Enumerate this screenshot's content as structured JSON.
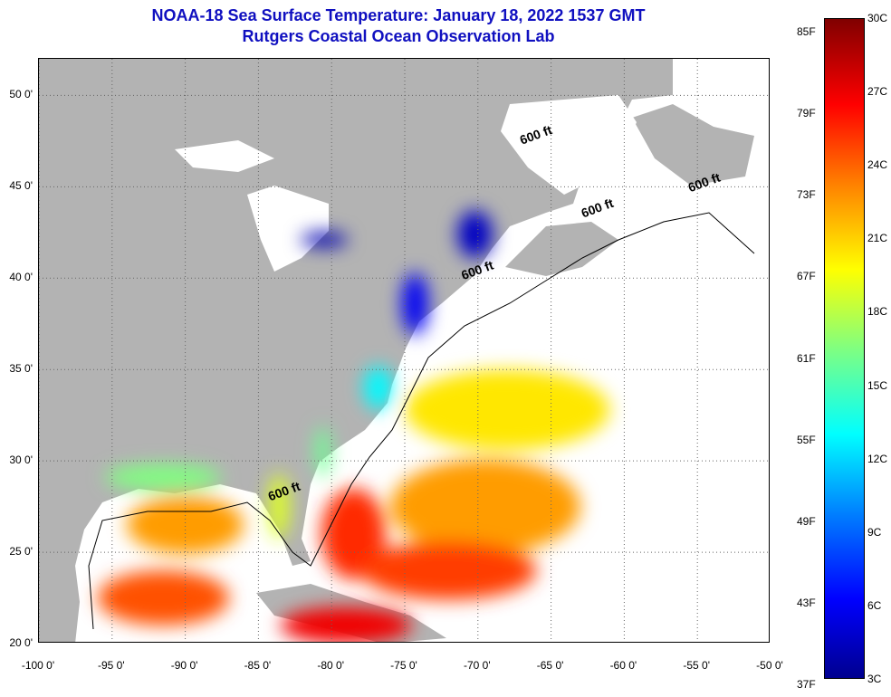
{
  "header": {
    "title": "NOAA-18 Sea Surface Temperature:  January 18, 2022 1537 GMT",
    "subtitle": "Rutgers Coastal Ocean Observation Lab"
  },
  "map": {
    "lon_range": [
      -100,
      -50
    ],
    "lat_range": [
      20,
      52
    ],
    "grid": "dotted",
    "land_color": "#b3b3b3",
    "lat_ticks": [
      {
        "value": 20,
        "label": "20 0'"
      },
      {
        "value": 25,
        "label": "25 0'"
      },
      {
        "value": 30,
        "label": "30 0'"
      },
      {
        "value": 35,
        "label": "35 0'"
      },
      {
        "value": 40,
        "label": "40 0'"
      },
      {
        "value": 45,
        "label": "45 0'"
      },
      {
        "value": 50,
        "label": "50 0'"
      }
    ],
    "lon_ticks": [
      {
        "value": -100,
        "label": "-100 0'"
      },
      {
        "value": -95,
        "label": "-95 0'"
      },
      {
        "value": -90,
        "label": "-90 0'"
      },
      {
        "value": -85,
        "label": "-85 0'"
      },
      {
        "value": -80,
        "label": "-80 0'"
      },
      {
        "value": -75,
        "label": "-75 0'"
      },
      {
        "value": -70,
        "label": "-70 0'"
      },
      {
        "value": -65,
        "label": "-65 0'"
      },
      {
        "value": -60,
        "label": "-60 0'"
      },
      {
        "value": -55,
        "label": "-55 0'"
      },
      {
        "value": -50,
        "label": "-50 0'"
      }
    ],
    "isobath_labels": [
      {
        "text": "600 ft",
        "lon": -67.0,
        "lat": 47.3
      },
      {
        "text": "600 ft",
        "lon": -55.5,
        "lat": 44.7
      },
      {
        "text": "600 ft",
        "lon": -62.8,
        "lat": 43.3
      },
      {
        "text": "600 ft",
        "lon": -71.0,
        "lat": 39.9
      },
      {
        "text": "600 ft",
        "lon": -84.2,
        "lat": 27.8
      }
    ]
  },
  "colorbar": {
    "colors": [
      "#00008f",
      "#0000ff",
      "#0080ff",
      "#00ffff",
      "#80ff80",
      "#ffff00",
      "#ff8000",
      "#ff0000",
      "#800000"
    ],
    "range_c": [
      3,
      30
    ],
    "celsius_labels": [
      {
        "value": 3,
        "label": "3C"
      },
      {
        "value": 6,
        "label": "6C"
      },
      {
        "value": 9,
        "label": "9C"
      },
      {
        "value": 12,
        "label": "12C"
      },
      {
        "value": 15,
        "label": "15C"
      },
      {
        "value": 18,
        "label": "18C"
      },
      {
        "value": 21,
        "label": "21C"
      },
      {
        "value": 24,
        "label": "24C"
      },
      {
        "value": 27,
        "label": "27C"
      },
      {
        "value": 30,
        "label": "30C"
      }
    ],
    "fahrenheit_labels": [
      {
        "value": 37,
        "label": "37F"
      },
      {
        "value": 43,
        "label": "43F"
      },
      {
        "value": 49,
        "label": "49F"
      },
      {
        "value": 55,
        "label": "55F"
      },
      {
        "value": 61,
        "label": "61F"
      },
      {
        "value": 67,
        "label": "67F"
      },
      {
        "value": 73,
        "label": "73F"
      },
      {
        "value": 79,
        "label": "79F"
      },
      {
        "value": 85,
        "label": "85F"
      }
    ]
  },
  "sst_regions": [
    {
      "name": "gulf-maine-cold",
      "temp_c": 4.5,
      "lon": -70.2,
      "lat": 42.4,
      "rx": 1.2,
      "ry": 1.3
    },
    {
      "name": "lake-erie-cold",
      "temp_c": 4.0,
      "lon": -80.5,
      "lat": 42.1,
      "rx": 1.6,
      "ry": 0.4
    },
    {
      "name": "mid-atlantic-shelf",
      "temp_c": 6.0,
      "lon": -74.3,
      "lat": 38.6,
      "rx": 0.9,
      "ry": 1.7
    },
    {
      "name": "cape-hatteras-coast",
      "temp_c": 13.0,
      "lon": -76.8,
      "lat": 34.0,
      "rx": 1.0,
      "ry": 1.2
    },
    {
      "name": "georgia-shelf",
      "temp_c": 16.0,
      "lon": -80.6,
      "lat": 30.5,
      "rx": 0.5,
      "ry": 1.4
    },
    {
      "name": "sargasso-north",
      "temp_c": 20.5,
      "lon": -68.0,
      "lat": 32.8,
      "rx": 7.0,
      "ry": 2.2
    },
    {
      "name": "sargasso-south",
      "temp_c": 22.5,
      "lon": -69.5,
      "lat": 27.5,
      "rx": 6.5,
      "ry": 2.6
    },
    {
      "name": "gulf-stream-florida",
      "temp_c": 25.5,
      "lon": -78.5,
      "lat": 26.0,
      "rx": 2.2,
      "ry": 2.5
    },
    {
      "name": "bahamas-atlantic",
      "temp_c": 25.0,
      "lon": -72.0,
      "lat": 24.0,
      "rx": 6.0,
      "ry": 1.6
    },
    {
      "name": "gulf-nw-shelf",
      "temp_c": 16.5,
      "lon": -91.5,
      "lat": 29.1,
      "rx": 4.0,
      "ry": 0.7
    },
    {
      "name": "gulf-central",
      "temp_c": 22.5,
      "lon": -90.0,
      "lat": 26.5,
      "rx": 4.0,
      "ry": 1.6
    },
    {
      "name": "gulf-south",
      "temp_c": 24.5,
      "lon": -91.5,
      "lat": 22.5,
      "rx": 4.5,
      "ry": 1.5
    },
    {
      "name": "caribbean-north",
      "temp_c": 27.0,
      "lon": -79.0,
      "lat": 21.0,
      "rx": 4.5,
      "ry": 1.0
    },
    {
      "name": "west-florida-shelf",
      "temp_c": 19.0,
      "lon": -83.6,
      "lat": 27.5,
      "rx": 0.7,
      "ry": 1.8
    }
  ]
}
